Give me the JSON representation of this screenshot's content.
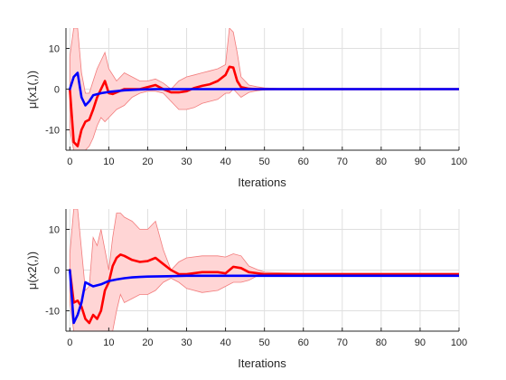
{
  "colors": {
    "red": "#ff0000",
    "blue": "#0000ff",
    "band_fill": "#ffd5d5",
    "band_edge": "#f27c7c"
  },
  "chart_data": [
    {
      "type": "line",
      "xlabel": "Iterations",
      "ylabel": "μ(x1(,))",
      "xlim": [
        -1,
        100
      ],
      "ylim": [
        -15,
        15
      ],
      "xticks": [
        0,
        10,
        20,
        30,
        40,
        50,
        60,
        70,
        80,
        90,
        100
      ],
      "yticks": [
        10,
        0,
        -10
      ],
      "grid": true,
      "series": [
        {
          "color": "#ff0000",
          "x": [
            0,
            1,
            2,
            3,
            4,
            5,
            6,
            7,
            8,
            9,
            10,
            11,
            12,
            14,
            16,
            18,
            20,
            22,
            24,
            26,
            28,
            30,
            32,
            34,
            36,
            38,
            40,
            41,
            42,
            43,
            44,
            46,
            48,
            50,
            55,
            60,
            70,
            80,
            90,
            100
          ],
          "values": [
            0,
            -13,
            -14,
            -10,
            -8,
            -7.5,
            -5,
            -2,
            0,
            2,
            -1,
            -1.2,
            -0.8,
            0,
            0,
            0,
            0.5,
            1,
            0,
            -0.8,
            -0.8,
            -0.5,
            0.3,
            0.8,
            1.2,
            2,
            3.5,
            5.5,
            5.3,
            2,
            0.5,
            0.1,
            0,
            0,
            0,
            0,
            0,
            0,
            0,
            0
          ]
        },
        {
          "color": "#0000ff",
          "x": [
            0,
            1,
            2,
            3,
            4,
            5,
            6,
            8,
            10,
            14,
            18,
            22,
            26,
            30,
            40,
            50,
            60,
            70,
            80,
            90,
            100
          ],
          "values": [
            0,
            3,
            4,
            -2,
            -4,
            -3,
            -1.5,
            -1,
            -0.7,
            -0.3,
            -0.1,
            0,
            0,
            0,
            0,
            0,
            0,
            0,
            0,
            0,
            0
          ]
        }
      ],
      "band": {
        "color": "#ffd5d5",
        "x": [
          0,
          1,
          2,
          3,
          4,
          5,
          6,
          7,
          8,
          9,
          10,
          12,
          14,
          16,
          18,
          20,
          22,
          24,
          26,
          28,
          30,
          32,
          34,
          36,
          38,
          40,
          41,
          42,
          43,
          44,
          46,
          48,
          50,
          55,
          60,
          70,
          80,
          90,
          100
        ],
        "upper": [
          8,
          15,
          15,
          4,
          -1,
          -1,
          2,
          5,
          7,
          9,
          5,
          2,
          4,
          3,
          2,
          2,
          2.5,
          1.5,
          0,
          2,
          3,
          3.5,
          4,
          4.5,
          5,
          6,
          15,
          14,
          9,
          3,
          1,
          0.6,
          0.3,
          0.1,
          0,
          0,
          0,
          0,
          0
        ],
        "lower": [
          -10,
          -15,
          -15,
          -15,
          -15,
          -14,
          -12,
          -9,
          -7,
          -8,
          -7,
          -5,
          -4,
          -2,
          -1,
          -0.5,
          -0.5,
          -1,
          -3,
          -5,
          -5,
          -4.5,
          -3.5,
          -3,
          -2.5,
          -1,
          -1,
          0,
          -1,
          -2,
          -0.8,
          -0.4,
          -0.2,
          -0.1,
          0,
          0,
          0,
          0,
          0
        ]
      }
    },
    {
      "type": "line",
      "xlabel": "Iterations",
      "ylabel": "μ(x2(,))",
      "xlim": [
        -1,
        100
      ],
      "ylim": [
        -15,
        15
      ],
      "xticks": [
        0,
        10,
        20,
        30,
        40,
        50,
        60,
        70,
        80,
        90,
        100
      ],
      "yticks": [
        10,
        0,
        -10
      ],
      "grid": true,
      "series": [
        {
          "color": "#ff0000",
          "x": [
            0,
            1,
            2,
            3,
            4,
            5,
            6,
            7,
            8,
            9,
            10,
            11,
            12,
            13,
            14,
            16,
            18,
            20,
            22,
            24,
            26,
            28,
            30,
            34,
            38,
            40,
            42,
            44,
            46,
            50,
            60,
            70,
            80,
            90,
            100
          ],
          "values": [
            0,
            -8,
            -7.5,
            -9,
            -12,
            -13,
            -11,
            -12,
            -10,
            -5,
            -3,
            1,
            3,
            3.8,
            3.5,
            2.5,
            2,
            2.2,
            3,
            1.5,
            0,
            -1,
            -1,
            -0.5,
            -0.5,
            -0.8,
            0.8,
            0.5,
            -0.5,
            -1,
            -1,
            -1,
            -1,
            -1,
            -1
          ]
        },
        {
          "color": "#0000ff",
          "x": [
            0,
            1,
            2,
            3,
            4,
            5,
            6,
            8,
            10,
            12,
            14,
            16,
            18,
            20,
            25,
            30,
            40,
            50,
            60,
            70,
            80,
            90,
            100
          ],
          "values": [
            0,
            -13,
            -11,
            -8,
            -3,
            -3.5,
            -4,
            -3.5,
            -2.7,
            -2.3,
            -2,
            -1.8,
            -1.7,
            -1.6,
            -1.5,
            -1.4,
            -1.4,
            -1.4,
            -1.4,
            -1.4,
            -1.4,
            -1.4,
            -1.4
          ]
        }
      ],
      "band": {
        "color": "#ffd5d5",
        "x": [
          0,
          1,
          2,
          3,
          4,
          5,
          6,
          7,
          8,
          9,
          10,
          11,
          12,
          13,
          14,
          16,
          18,
          20,
          22,
          24,
          26,
          28,
          30,
          34,
          38,
          40,
          42,
          44,
          46,
          48,
          50,
          55,
          60,
          70,
          80,
          90,
          100
        ],
        "upper": [
          4,
          15,
          15,
          5,
          -5,
          -4,
          8,
          6,
          10,
          5,
          0,
          8,
          14,
          14,
          13,
          12,
          10,
          10,
          12,
          5,
          0,
          2,
          3,
          3.5,
          3.5,
          3.2,
          4,
          3.5,
          1,
          0.2,
          -0.5,
          -0.7,
          -0.8,
          -0.8,
          -0.8,
          -0.8,
          -0.8
        ],
        "lower": [
          -8,
          -15,
          -15,
          -15,
          -15,
          -15,
          -15,
          -15,
          -15,
          -15,
          -15,
          -15,
          -10,
          -6,
          -8,
          -7,
          -6,
          -6,
          -5,
          -3,
          -2,
          -3,
          -4.5,
          -5.5,
          -5,
          -4,
          -3,
          -3,
          -2.5,
          -1.5,
          -1.3,
          -1.2,
          -1.2,
          -1.2,
          -1.2,
          -1.2,
          -1.2
        ]
      }
    }
  ]
}
